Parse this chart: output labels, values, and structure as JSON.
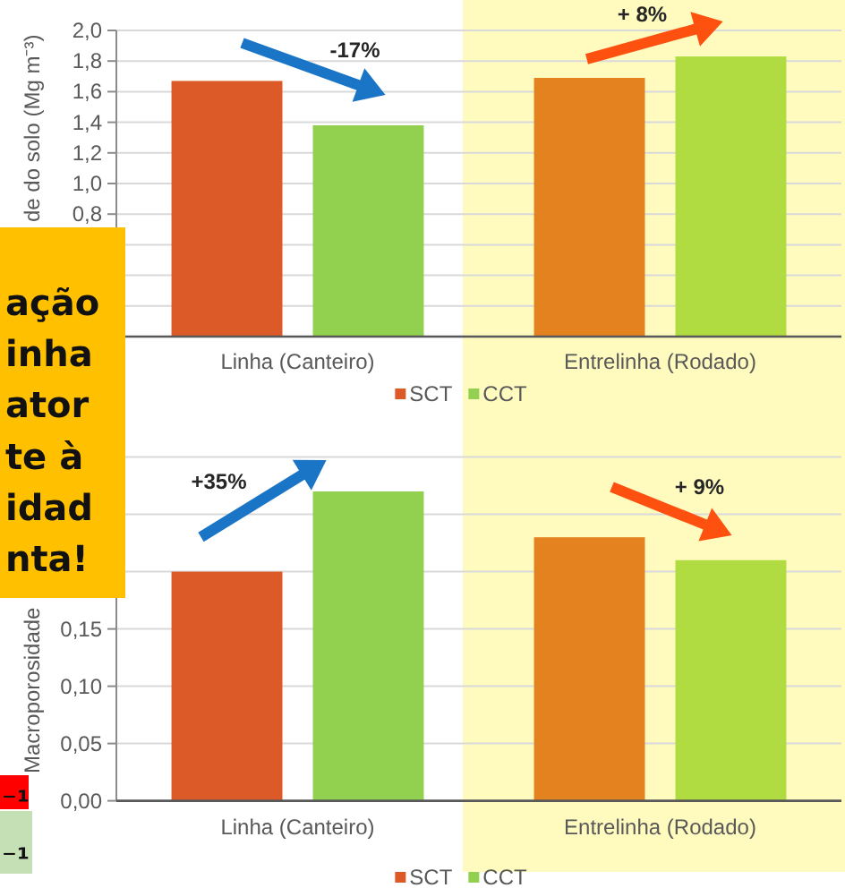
{
  "chart_data": [
    {
      "type": "bar",
      "ylabel": "de do solo (Mg m⁻³)",
      "categories": [
        "Linha (Canteiro)",
        "Entrelinha (Rodado)"
      ],
      "series": [
        {
          "name": "SCT",
          "color": "#dc5a28",
          "colors": [
            "#dc5a28",
            "#e4821f"
          ],
          "values": [
            1.67,
            1.69
          ]
        },
        {
          "name": "CCT",
          "color": "#92d050",
          "colors": [
            "#92d050",
            "#b1dc41"
          ],
          "values": [
            1.38,
            1.83
          ]
        }
      ],
      "ylim": [
        0,
        2
      ],
      "yticks": [
        {
          "value": 0,
          "label": null
        },
        {
          "value": 0.2,
          "label": null
        },
        {
          "value": 0.4,
          "label": null
        },
        {
          "value": 0.6,
          "label": null
        },
        {
          "value": 0.8,
          "label": "0,8"
        },
        {
          "value": 1,
          "label": "1,0"
        },
        {
          "value": 1.2,
          "label": "1,2"
        },
        {
          "value": 1.4,
          "label": "1,4"
        },
        {
          "value": 1.6,
          "label": "1,6"
        },
        {
          "value": 1.8,
          "label": "1,8"
        },
        {
          "value": 2,
          "label": "2,0"
        }
      ],
      "grid": "y",
      "legend": "bottom",
      "bands": [
        {
          "axis": "x",
          "from": "Entrelinha (Rodado)",
          "to": "Entrelinha (Rodado)",
          "color": "#fffbbf"
        }
      ],
      "annotations": [
        "-17%",
        "+ 8%",
        "ação\ninha\nator\nte à\nidad\nnta!"
      ]
    },
    {
      "type": "bar",
      "ylabel": "Macroporosidade",
      "categories": [
        "Linha (Canteiro)",
        "Entrelinha (Rodado)"
      ],
      "series": [
        {
          "name": "SCT",
          "color": "#dc5a28",
          "colors": [
            "#dc5a28",
            "#e4821f"
          ],
          "values": [
            0.2,
            0.23
          ]
        },
        {
          "name": "CCT",
          "color": "#92d050",
          "colors": [
            "#92d050",
            "#b1dc41"
          ],
          "values": [
            0.27,
            0.21
          ]
        }
      ],
      "ylim": [
        0,
        0.3
      ],
      "yticks": [
        {
          "value": 0,
          "label": "0,00"
        },
        {
          "value": 0.05,
          "label": "0,05"
        },
        {
          "value": 0.1,
          "label": "0,10"
        },
        {
          "value": 0.15,
          "label": "0,15"
        },
        {
          "value": 0.2,
          "label": null
        },
        {
          "value": 0.25,
          "label": null
        },
        {
          "value": 0.3,
          "label": null
        }
      ],
      "grid": "y",
      "legend": "bottom",
      "bands": [
        {
          "axis": "x",
          "from": "Entrelinha (Rodado)",
          "to": "Entrelinha (Rodado)",
          "color": "#fffbbf"
        }
      ],
      "annotations": [
        "+35%",
        "+ 9%",
        "⁻¹",
        "⁻¹"
      ]
    }
  ]
}
